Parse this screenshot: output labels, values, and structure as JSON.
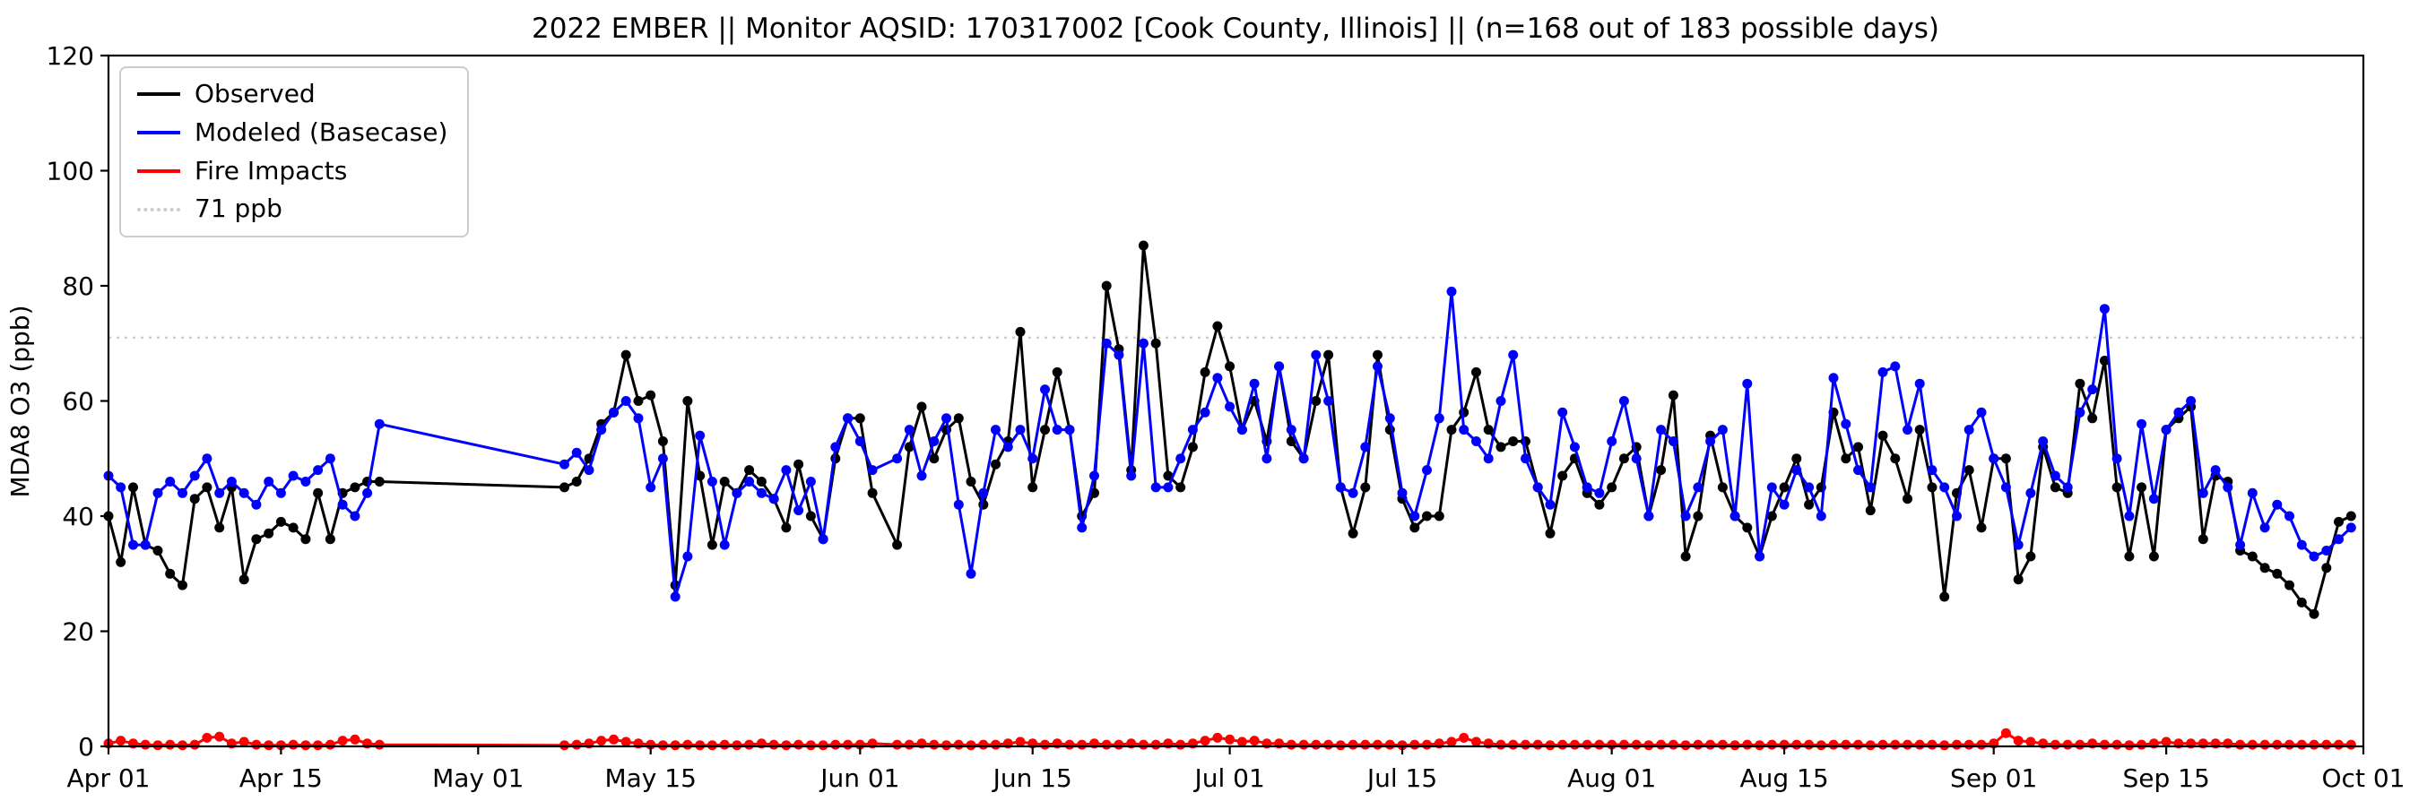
{
  "monitor": {
    "year": "2022",
    "program": "EMBER",
    "aqsid": "170317002",
    "location": "Cook County, Illinois",
    "days_observed": 168,
    "days_possible": 183
  },
  "chart_data": {
    "type": "line",
    "title": "2022 EMBER || Monitor AQSID: 170317002 [Cook County, Illinois] || (n=168 out of 183 possible days)",
    "xlabel": "",
    "ylabel": "MDA8 O3 (ppb)",
    "ylim": [
      0,
      120
    ],
    "yticks": [
      0,
      20,
      40,
      60,
      80,
      100,
      120
    ],
    "xlim_days": [
      0,
      183
    ],
    "xticks": [
      {
        "day": 0,
        "label": "Apr 01"
      },
      {
        "day": 14,
        "label": "Apr 15"
      },
      {
        "day": 30,
        "label": "May 01"
      },
      {
        "day": 44,
        "label": "May 15"
      },
      {
        "day": 61,
        "label": "Jun 01"
      },
      {
        "day": 75,
        "label": "Jun 15"
      },
      {
        "day": 91,
        "label": "Jul 01"
      },
      {
        "day": 105,
        "label": "Jul 15"
      },
      {
        "day": 122,
        "label": "Aug 01"
      },
      {
        "day": 136,
        "label": "Aug 15"
      },
      {
        "day": 153,
        "label": "Sep 01"
      },
      {
        "day": 167,
        "label": "Sep 15"
      },
      {
        "day": 183,
        "label": "Oct 01"
      }
    ],
    "grid": false,
    "legend_position": "upper-left",
    "reference_line": {
      "value": 71,
      "label": "71 ppb",
      "color": "#cccccc",
      "style": "dotted"
    },
    "legend": [
      {
        "label": "Observed",
        "color": "#000000",
        "dashed": false
      },
      {
        "label": "Modeled (Basecase)",
        "color": "#0000ff",
        "dashed": false
      },
      {
        "label": "Fire Impacts",
        "color": "#ff0000",
        "dashed": false
      },
      {
        "label": "71 ppb",
        "color": "#cccccc",
        "dashed": true
      }
    ],
    "x_axis_unit": "days since Apr 01",
    "x_days": [
      0,
      1,
      2,
      3,
      4,
      5,
      6,
      7,
      8,
      9,
      10,
      11,
      12,
      13,
      14,
      15,
      16,
      17,
      18,
      19,
      20,
      21,
      22,
      37,
      38,
      39,
      40,
      41,
      42,
      43,
      44,
      45,
      46,
      47,
      48,
      49,
      50,
      51,
      52,
      53,
      54,
      55,
      56,
      57,
      58,
      59,
      60,
      61,
      62,
      64,
      65,
      66,
      67,
      68,
      69,
      70,
      71,
      72,
      73,
      74,
      75,
      76,
      77,
      78,
      79,
      80,
      81,
      82,
      83,
      84,
      85,
      86,
      87,
      88,
      89,
      90,
      91,
      92,
      93,
      94,
      95,
      96,
      97,
      98,
      99,
      100,
      101,
      102,
      103,
      104,
      105,
      106,
      107,
      108,
      109,
      110,
      111,
      112,
      113,
      114,
      115,
      116,
      117,
      118,
      119,
      120,
      121,
      122,
      123,
      124,
      125,
      126,
      127,
      128,
      129,
      130,
      131,
      132,
      133,
      134,
      135,
      136,
      137,
      138,
      139,
      140,
      141,
      142,
      143,
      144,
      145,
      146,
      147,
      148,
      149,
      150,
      151,
      152,
      153,
      154,
      155,
      156,
      157,
      158,
      159,
      160,
      161,
      162,
      163,
      164,
      165,
      166,
      167,
      168,
      169,
      170,
      171,
      172,
      173,
      174,
      175,
      176,
      177,
      178,
      179,
      180,
      181,
      182
    ],
    "series": [
      {
        "name": "Observed",
        "color": "#000000",
        "values": [
          40,
          32,
          45,
          35,
          34,
          30,
          28,
          43,
          45,
          38,
          45,
          29,
          36,
          37,
          39,
          38,
          36,
          44,
          36,
          44,
          45,
          46,
          46,
          45,
          46,
          50,
          56,
          58,
          68,
          60,
          61,
          53,
          28,
          60,
          47,
          35,
          46,
          44,
          48,
          46,
          43,
          38,
          49,
          40,
          36,
          50,
          57,
          57,
          44,
          35,
          52,
          59,
          50,
          55,
          57,
          46,
          42,
          49,
          53,
          72,
          45,
          55,
          65,
          55,
          40,
          44,
          80,
          69,
          48,
          87,
          70,
          47,
          45,
          52,
          65,
          73,
          66,
          55,
          60,
          53,
          66,
          53,
          50,
          60,
          68,
          45,
          37,
          45,
          68,
          55,
          43,
          38,
          40,
          40,
          55,
          58,
          65,
          55,
          52,
          53,
          53,
          45,
          37,
          47,
          50,
          44,
          42,
          45,
          50,
          52,
          40,
          48,
          61,
          33,
          40,
          54,
          45,
          40,
          38,
          33,
          40,
          45,
          50,
          42,
          45,
          58,
          50,
          52,
          41,
          54,
          50,
          43,
          55,
          45,
          26,
          44,
          48,
          38,
          50,
          50,
          29,
          33,
          52,
          45,
          44,
          63,
          57,
          67,
          45,
          33,
          45,
          33,
          55,
          57,
          59,
          36,
          47,
          46,
          34,
          33,
          31,
          30,
          28,
          25,
          23,
          31,
          39,
          40
        ]
      },
      {
        "name": "Modeled (Basecase)",
        "color": "#0000ff",
        "values": [
          47,
          45,
          35,
          35,
          44,
          46,
          44,
          47,
          50,
          44,
          46,
          44,
          42,
          46,
          44,
          47,
          46,
          48,
          50,
          42,
          40,
          44,
          56,
          49,
          51,
          48,
          55,
          58,
          60,
          57,
          45,
          50,
          26,
          33,
          54,
          46,
          35,
          44,
          46,
          44,
          43,
          48,
          41,
          46,
          36,
          52,
          57,
          53,
          48,
          50,
          55,
          47,
          53,
          57,
          42,
          30,
          44,
          55,
          52,
          55,
          50,
          62,
          55,
          55,
          38,
          47,
          70,
          68,
          47,
          70,
          45,
          45,
          50,
          55,
          58,
          64,
          59,
          55,
          63,
          50,
          66,
          55,
          50,
          68,
          60,
          45,
          44,
          52,
          66,
          57,
          44,
          40,
          48,
          57,
          79,
          55,
          53,
          50,
          60,
          68,
          50,
          45,
          42,
          58,
          52,
          45,
          44,
          53,
          60,
          50,
          40,
          55,
          53,
          40,
          45,
          53,
          55,
          40,
          63,
          33,
          45,
          42,
          48,
          45,
          40,
          64,
          56,
          48,
          45,
          65,
          66,
          55,
          63,
          48,
          45,
          40,
          55,
          58,
          50,
          45,
          35,
          44,
          53,
          47,
          45,
          58,
          62,
          76,
          50,
          40,
          56,
          43,
          55,
          58,
          60,
          44,
          48,
          45,
          35,
          44,
          38,
          42,
          40,
          35,
          33,
          34,
          36,
          38
        ]
      },
      {
        "name": "Fire Impacts",
        "color": "#ff0000",
        "values": [
          0.5,
          1.0,
          0.5,
          0.3,
          0.2,
          0.3,
          0.2,
          0.3,
          1.5,
          1.7,
          0.5,
          0.8,
          0.3,
          0.2,
          0.2,
          0.3,
          0.2,
          0.2,
          0.3,
          1.0,
          1.2,
          0.5,
          0.3,
          0.2,
          0.3,
          0.5,
          1.0,
          1.2,
          0.8,
          0.5,
          0.3,
          0.2,
          0.2,
          0.3,
          0.2,
          0.2,
          0.3,
          0.2,
          0.3,
          0.5,
          0.3,
          0.2,
          0.3,
          0.2,
          0.2,
          0.3,
          0.3,
          0.3,
          0.5,
          0.3,
          0.3,
          0.5,
          0.3,
          0.2,
          0.3,
          0.2,
          0.3,
          0.3,
          0.5,
          0.8,
          0.5,
          0.3,
          0.5,
          0.3,
          0.3,
          0.5,
          0.3,
          0.3,
          0.5,
          0.3,
          0.3,
          0.5,
          0.3,
          0.5,
          1.0,
          1.5,
          1.2,
          0.8,
          1.0,
          0.5,
          0.5,
          0.3,
          0.3,
          0.3,
          0.3,
          0.2,
          0.3,
          0.3,
          0.3,
          0.3,
          0.2,
          0.3,
          0.3,
          0.5,
          0.8,
          1.5,
          0.8,
          0.5,
          0.3,
          0.3,
          0.3,
          0.3,
          0.2,
          0.3,
          0.3,
          0.3,
          0.3,
          0.3,
          0.3,
          0.3,
          0.2,
          0.3,
          0.3,
          0.2,
          0.3,
          0.3,
          0.3,
          0.2,
          0.3,
          0.2,
          0.3,
          0.3,
          0.3,
          0.3,
          0.2,
          0.3,
          0.3,
          0.3,
          0.2,
          0.3,
          0.3,
          0.3,
          0.3,
          0.3,
          0.2,
          0.3,
          0.3,
          0.3,
          0.5,
          2.3,
          1.0,
          0.8,
          0.5,
          0.3,
          0.3,
          0.3,
          0.5,
          0.3,
          0.3,
          0.2,
          0.3,
          0.5,
          0.8,
          0.5,
          0.5,
          0.5,
          0.5,
          0.5,
          0.3,
          0.3,
          0.3,
          0.3,
          0.3,
          0.3,
          0.3,
          0.3,
          0.3,
          0.3
        ]
      }
    ]
  }
}
